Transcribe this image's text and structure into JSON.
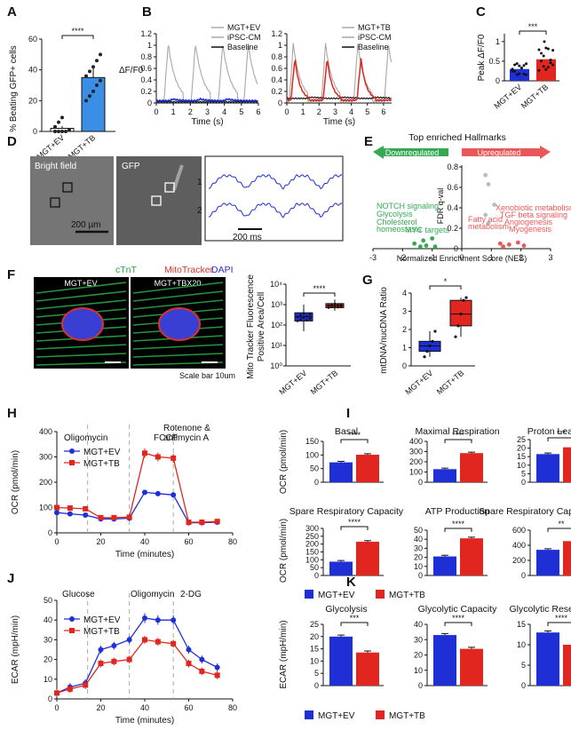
{
  "colors": {
    "ev": "#1f2fd6",
    "tb": "#e0261e",
    "ipsc": "#a8a8a8",
    "base": "#111111",
    "gfp_bg": "#6b6b6b",
    "up_arrow": "#e8585a",
    "down_arrow": "#35a853"
  },
  "panels": {
    "A": "A",
    "B": "B",
    "C": "C",
    "D": "D",
    "E": "E",
    "F": "F",
    "G": "G",
    "H": "H",
    "I": "I",
    "J": "J",
    "K": "K"
  },
  "chart_data": [
    {
      "id": "A",
      "type": "bar",
      "ylabel": "% Beating GFP+ cells",
      "categories": [
        "MGT+EV",
        "MGT+TB"
      ],
      "values": [
        2,
        35
      ],
      "errors": [
        1.5,
        6
      ],
      "ylim": [
        0,
        60
      ],
      "yticks": [
        0,
        20,
        40,
        60
      ],
      "significance": "****",
      "points": [
        [
          0,
          0,
          0,
          0,
          1,
          3,
          6,
          9
        ],
        [
          20,
          23,
          26,
          30,
          33,
          36,
          39,
          42,
          46,
          50
        ]
      ]
    },
    {
      "id": "B1",
      "type": "line",
      "ylabel": "ΔF/F0",
      "xlabel": "Time (s)",
      "xlim": [
        0,
        6
      ],
      "ylim": [
        0,
        1.2
      ],
      "yticks": [
        0,
        0.2,
        0.4,
        0.6,
        0.8,
        1,
        1.2
      ],
      "xticks": [
        0,
        1,
        2,
        3,
        4,
        5,
        6
      ],
      "legend": [
        "MGT+EV",
        "iPSC-CM",
        "Baseline"
      ],
      "peaks_ipsc": [
        0.7,
        2.3,
        3.9,
        5.4
      ]
    },
    {
      "id": "B2",
      "type": "line",
      "xlabel": "Time (s)",
      "xlim": [
        0,
        6.5
      ],
      "ylim": [
        0,
        1.2
      ],
      "yticks": [
        0,
        0.2,
        0.4,
        0.6,
        0.8,
        1,
        1.2
      ],
      "xticks": [
        0,
        1,
        2,
        3,
        4,
        5,
        6
      ],
      "legend": [
        "MGT+TB",
        "iPSC-CM",
        "Baseline"
      ],
      "peaks_tb": [
        0.5,
        2.5,
        4.6
      ],
      "peaks_ipsc": [
        0.4,
        2.4,
        4.4,
        6.3
      ]
    },
    {
      "id": "C",
      "type": "bar",
      "ylabel": "Peak ΔF/F0",
      "categories": [
        "MGT+EV",
        "MGT+TB"
      ],
      "values": [
        0.3,
        0.55
      ],
      "errors": [
        0.03,
        0.05
      ],
      "ylim": [
        0,
        1.2
      ],
      "yticks": [
        0,
        0.5,
        1
      ],
      "significance": "***"
    },
    {
      "id": "D",
      "type": "line",
      "labels": [
        "Bright field",
        "GFP"
      ],
      "scale_bar": "200 µm",
      "time_bar": "200 ms",
      "traces": [
        "1",
        "2"
      ]
    },
    {
      "id": "E",
      "type": "scatter",
      "title": "Top enriched Hallmarks",
      "down_label": "Downregulated",
      "up_label": "Upregulated",
      "xlabel": "Normalized Enrichment Score (NES)",
      "ylabel": "FDR q-val",
      "xlim": [
        -3,
        3
      ],
      "ylim": [
        0,
        0.8
      ],
      "xticks": [
        -3,
        -2,
        -1,
        0,
        1,
        2,
        3
      ],
      "yticks": [
        0,
        0.2,
        0.4,
        0.6,
        0.8
      ],
      "down_terms": [
        "NOTCH signaling",
        "Glycolysis",
        "Cholesterol",
        "homeostasis",
        "MYC targets"
      ],
      "up_terms": [
        "Xenobiotic metabolism",
        "TGF beta signaling",
        "Angiogenesis",
        "Myogenesis",
        "Fatty acid",
        "metabolism"
      ],
      "points_x": [
        -1.6,
        -1.4,
        -1.3,
        -1.2,
        -1.0,
        -0.9,
        0.8,
        0.9,
        1.1,
        1.3,
        1.6,
        1.9,
        2.1,
        1.4,
        0.9,
        0.8
      ],
      "points_y": [
        0.05,
        0.02,
        0.08,
        0.03,
        0.1,
        0.02,
        0.72,
        0.63,
        0.43,
        0.05,
        0.04,
        0.06,
        0.03,
        0.02,
        0.25,
        0.33
      ]
    },
    {
      "id": "F",
      "type": "scatter",
      "title_parts": [
        "cTnT",
        "MitoTracker",
        "DAPI"
      ],
      "images": [
        "MGT+EV",
        "MGT+TBX20"
      ],
      "scale": "Scale bar 10um",
      "ylabel1": "Mito Tracker Fluorescence",
      "ylabel2": "Positive Area/Cell",
      "categories": [
        "MGT+EV",
        "MGT+TB"
      ],
      "yticklabels": [
        "10⁰",
        "10¹",
        "10²",
        "10³",
        "10⁴"
      ],
      "ev_box": [
        1.7,
        2.2,
        2.4,
        2.6,
        3.0
      ],
      "tb_box": [
        2.7,
        2.85,
        2.95,
        3.05,
        3.25
      ],
      "significance": "****"
    },
    {
      "id": "G",
      "type": "bar",
      "ylabel": "mtDNA/nucDNA Ratio",
      "categories": [
        "MGT+EV",
        "MGT+TB"
      ],
      "ylim": [
        0,
        4
      ],
      "yticks": [
        0,
        1,
        2,
        3,
        4
      ],
      "ev_box": [
        0.5,
        0.8,
        1.1,
        1.35,
        1.9
      ],
      "tb_box": [
        1.6,
        2.2,
        2.85,
        3.6,
        3.75
      ],
      "significance": "*"
    },
    {
      "id": "H",
      "type": "line",
      "ylabel": "OCR (pmol/min)",
      "xlabel": "Time (minutes)",
      "xlim": [
        0,
        80
      ],
      "ylim": [
        0,
        400
      ],
      "yticks": [
        0,
        100,
        200,
        300,
        400
      ],
      "xticks": [
        0,
        20,
        40,
        60,
        80
      ],
      "events": [
        "Oligomycin",
        "FCCP",
        "Rotenone &",
        "antimycin A"
      ],
      "event_x": [
        14,
        33,
        53
      ],
      "x": [
        0,
        6,
        13,
        20,
        26,
        33,
        40,
        46,
        53,
        60,
        66,
        73
      ],
      "series": [
        {
          "name": "MGT+EV",
          "values": [
            80,
            75,
            70,
            55,
            55,
            58,
            160,
            155,
            150,
            40,
            40,
            42
          ]
        },
        {
          "name": "MGT+TB",
          "values": [
            100,
            98,
            95,
            60,
            60,
            62,
            315,
            300,
            295,
            42,
            42,
            45
          ]
        }
      ]
    },
    {
      "id": "I",
      "type": "bar",
      "ylabel": "OCR (pmol/min)",
      "legend": [
        "MGT+EV",
        "MGT+TB"
      ],
      "subplots": [
        {
          "title": "Basal",
          "ylim": [
            0,
            150
          ],
          "yticks": [
            0,
            50,
            100,
            150
          ],
          "values": [
            73,
            101
          ],
          "sig": "****"
        },
        {
          "title": "Maximal Respiration",
          "ylim": [
            0,
            400
          ],
          "yticks": [
            0,
            100,
            200,
            300,
            400
          ],
          "values": [
            128,
            285
          ],
          "sig": "****"
        },
        {
          "title": "Proton Leak",
          "ylim": [
            0,
            25
          ],
          "yticks": [
            0,
            5,
            10,
            15,
            20,
            25
          ],
          "values": [
            16.5,
            20.5
          ],
          "sig": "***"
        },
        {
          "title": "Spare Respiratory Capacity",
          "ylim": [
            0,
            300
          ],
          "yticks": [
            0,
            50,
            100,
            150,
            200,
            250,
            300
          ],
          "values": [
            88,
            215
          ],
          "sig": "****"
        },
        {
          "title": "ATP Production",
          "ylim": [
            0,
            50
          ],
          "yticks": [
            0,
            10,
            20,
            30,
            40,
            50
          ],
          "values": [
            21,
            41
          ],
          "sig": "****"
        },
        {
          "title": "Spare Respiratory Capacity (%)",
          "ylim": [
            0,
            600
          ],
          "yticks": [
            0,
            200,
            400,
            600
          ],
          "values": [
            340,
            455
          ],
          "sig": "**"
        }
      ]
    },
    {
      "id": "J",
      "type": "line",
      "ylabel": "ECAR (mpH/min)",
      "xlabel": "Time (minutes)",
      "xlim": [
        0,
        80
      ],
      "ylim": [
        0,
        50
      ],
      "yticks": [
        0,
        10,
        20,
        30,
        40,
        50
      ],
      "xticks": [
        0,
        20,
        40,
        60,
        80
      ],
      "events": [
        "Glucose",
        "Oligomycin",
        "2-DG"
      ],
      "event_x": [
        14,
        33,
        53
      ],
      "x": [
        0,
        6,
        13,
        20,
        26,
        33,
        40,
        46,
        53,
        60,
        66,
        73
      ],
      "series": [
        {
          "name": "MGT+EV",
          "values": [
            3,
            6,
            8,
            25,
            27,
            30,
            41,
            40,
            40,
            25,
            20,
            16
          ]
        },
        {
          "name": "MGT+TB",
          "values": [
            3,
            5,
            7,
            18,
            19,
            20,
            30,
            29,
            28,
            18,
            14,
            12
          ]
        }
      ]
    },
    {
      "id": "K",
      "type": "bar",
      "ylabel": "ECAR (mpH/min)",
      "legend": [
        "MGT+EV",
        "MGT+TB"
      ],
      "subplots": [
        {
          "title": "Glycolysis",
          "ylim": [
            0,
            25
          ],
          "yticks": [
            0,
            5,
            10,
            15,
            20,
            25
          ],
          "values": [
            20,
            13.5
          ],
          "sig": "***"
        },
        {
          "title": "Glycolytic Capacity",
          "ylim": [
            0,
            40
          ],
          "yticks": [
            0,
            10,
            20,
            30,
            40
          ],
          "values": [
            33,
            24
          ],
          "sig": "****"
        },
        {
          "title": "Glycolytic Reserve",
          "ylim": [
            0,
            15
          ],
          "yticks": [
            0,
            5,
            10,
            15
          ],
          "values": [
            13,
            10
          ],
          "sig": "****"
        }
      ]
    }
  ]
}
